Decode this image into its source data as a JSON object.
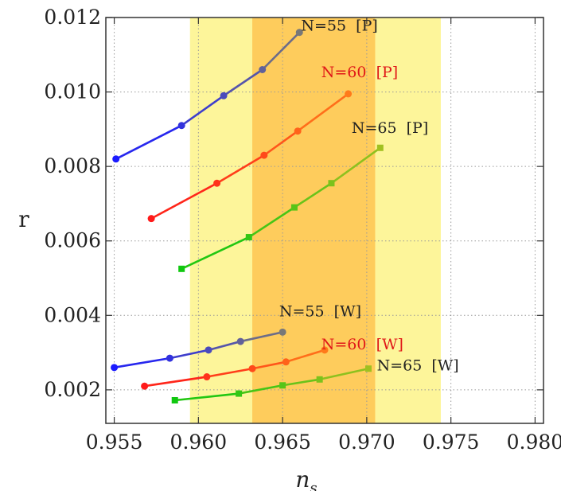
{
  "chart_data": {
    "type": "line",
    "xlabel": "n",
    "xlabel_sub": "s",
    "ylabel": "r",
    "xlim": [
      0.9545,
      0.9805
    ],
    "ylim": [
      0.0011,
      0.012
    ],
    "x_ticks": [
      0.955,
      0.96,
      0.965,
      0.97,
      0.975,
      0.98
    ],
    "x_tick_labels": [
      "0.955",
      "0.960",
      "0.965",
      "0.970",
      "0.975",
      "0.980"
    ],
    "y_ticks": [
      0.002,
      0.004,
      0.006,
      0.008,
      0.01,
      0.012
    ],
    "y_tick_labels": [
      "0.002",
      "0.004",
      "0.006",
      "0.008",
      "0.010",
      "0.012"
    ],
    "grid": true,
    "bands": [
      {
        "x0": 0.9595,
        "x1": 0.9744,
        "color": "#fdf59a"
      },
      {
        "x0": 0.9632,
        "x1": 0.9705,
        "color": "#fecc5c"
      }
    ],
    "series": [
      {
        "name": "N=55 [P]",
        "color_start": "#1b1bff",
        "color_end": "#787878",
        "marker": "circle",
        "x": [
          0.9551,
          0.959,
          0.9615,
          0.9638,
          0.966
        ],
        "y": [
          0.0082,
          0.0091,
          0.0099,
          0.0106,
          0.0116
        ]
      },
      {
        "name": "N=60 [P]",
        "color_start": "#ff1a1a",
        "color_end": "#ff7a1a",
        "marker": "circle",
        "x": [
          0.9572,
          0.9611,
          0.9639,
          0.9659,
          0.9689
        ],
        "y": [
          0.0066,
          0.00755,
          0.0083,
          0.00895,
          0.00995
        ]
      },
      {
        "name": "N=65 [P]",
        "color_start": "#10c810",
        "color_end": "#a0c020",
        "marker": "square",
        "x": [
          0.959,
          0.963,
          0.9657,
          0.9679,
          0.9708
        ],
        "y": [
          0.00525,
          0.0061,
          0.0069,
          0.00755,
          0.0085
        ]
      },
      {
        "name": "N=55 [W]",
        "color_start": "#1b1bff",
        "color_end": "#787878",
        "marker": "circle",
        "x": [
          0.955,
          0.9583,
          0.9606,
          0.9625,
          0.965
        ],
        "y": [
          0.0026,
          0.00285,
          0.00307,
          0.0033,
          0.00355
        ]
      },
      {
        "name": "N=60 [W]",
        "color_start": "#ff1a1a",
        "color_end": "#ff7a1a",
        "marker": "circle",
        "x": [
          0.9568,
          0.9605,
          0.9632,
          0.9652,
          0.9675
        ],
        "y": [
          0.0021,
          0.00235,
          0.00257,
          0.00275,
          0.00307
        ]
      },
      {
        "name": "N=65 [W]",
        "color_start": "#10c810",
        "color_end": "#a0c020",
        "marker": "square",
        "x": [
          0.9586,
          0.9624,
          0.965,
          0.9672,
          0.9701
        ],
        "y": [
          0.00172,
          0.0019,
          0.00212,
          0.00228,
          0.00257
        ]
      }
    ],
    "annotations": [
      {
        "text": "N=55  [P]",
        "x": 0.9661,
        "y": 0.01165,
        "color": "#222222"
      },
      {
        "text": "N=60  [P]",
        "x": 0.9673,
        "y": 0.0104,
        "color": "#e01818"
      },
      {
        "text": "N=65  [P]",
        "x": 0.9691,
        "y": 0.0089,
        "color": "#222222"
      },
      {
        "text": "N=55  [W]",
        "x": 0.9648,
        "y": 0.00397,
        "color": "#222222"
      },
      {
        "text": "N=60  [W]",
        "x": 0.9673,
        "y": 0.00309,
        "color": "#e01818"
      },
      {
        "text": "N=65  [W]",
        "x": 0.9706,
        "y": 0.00252,
        "color": "#222222"
      }
    ]
  }
}
